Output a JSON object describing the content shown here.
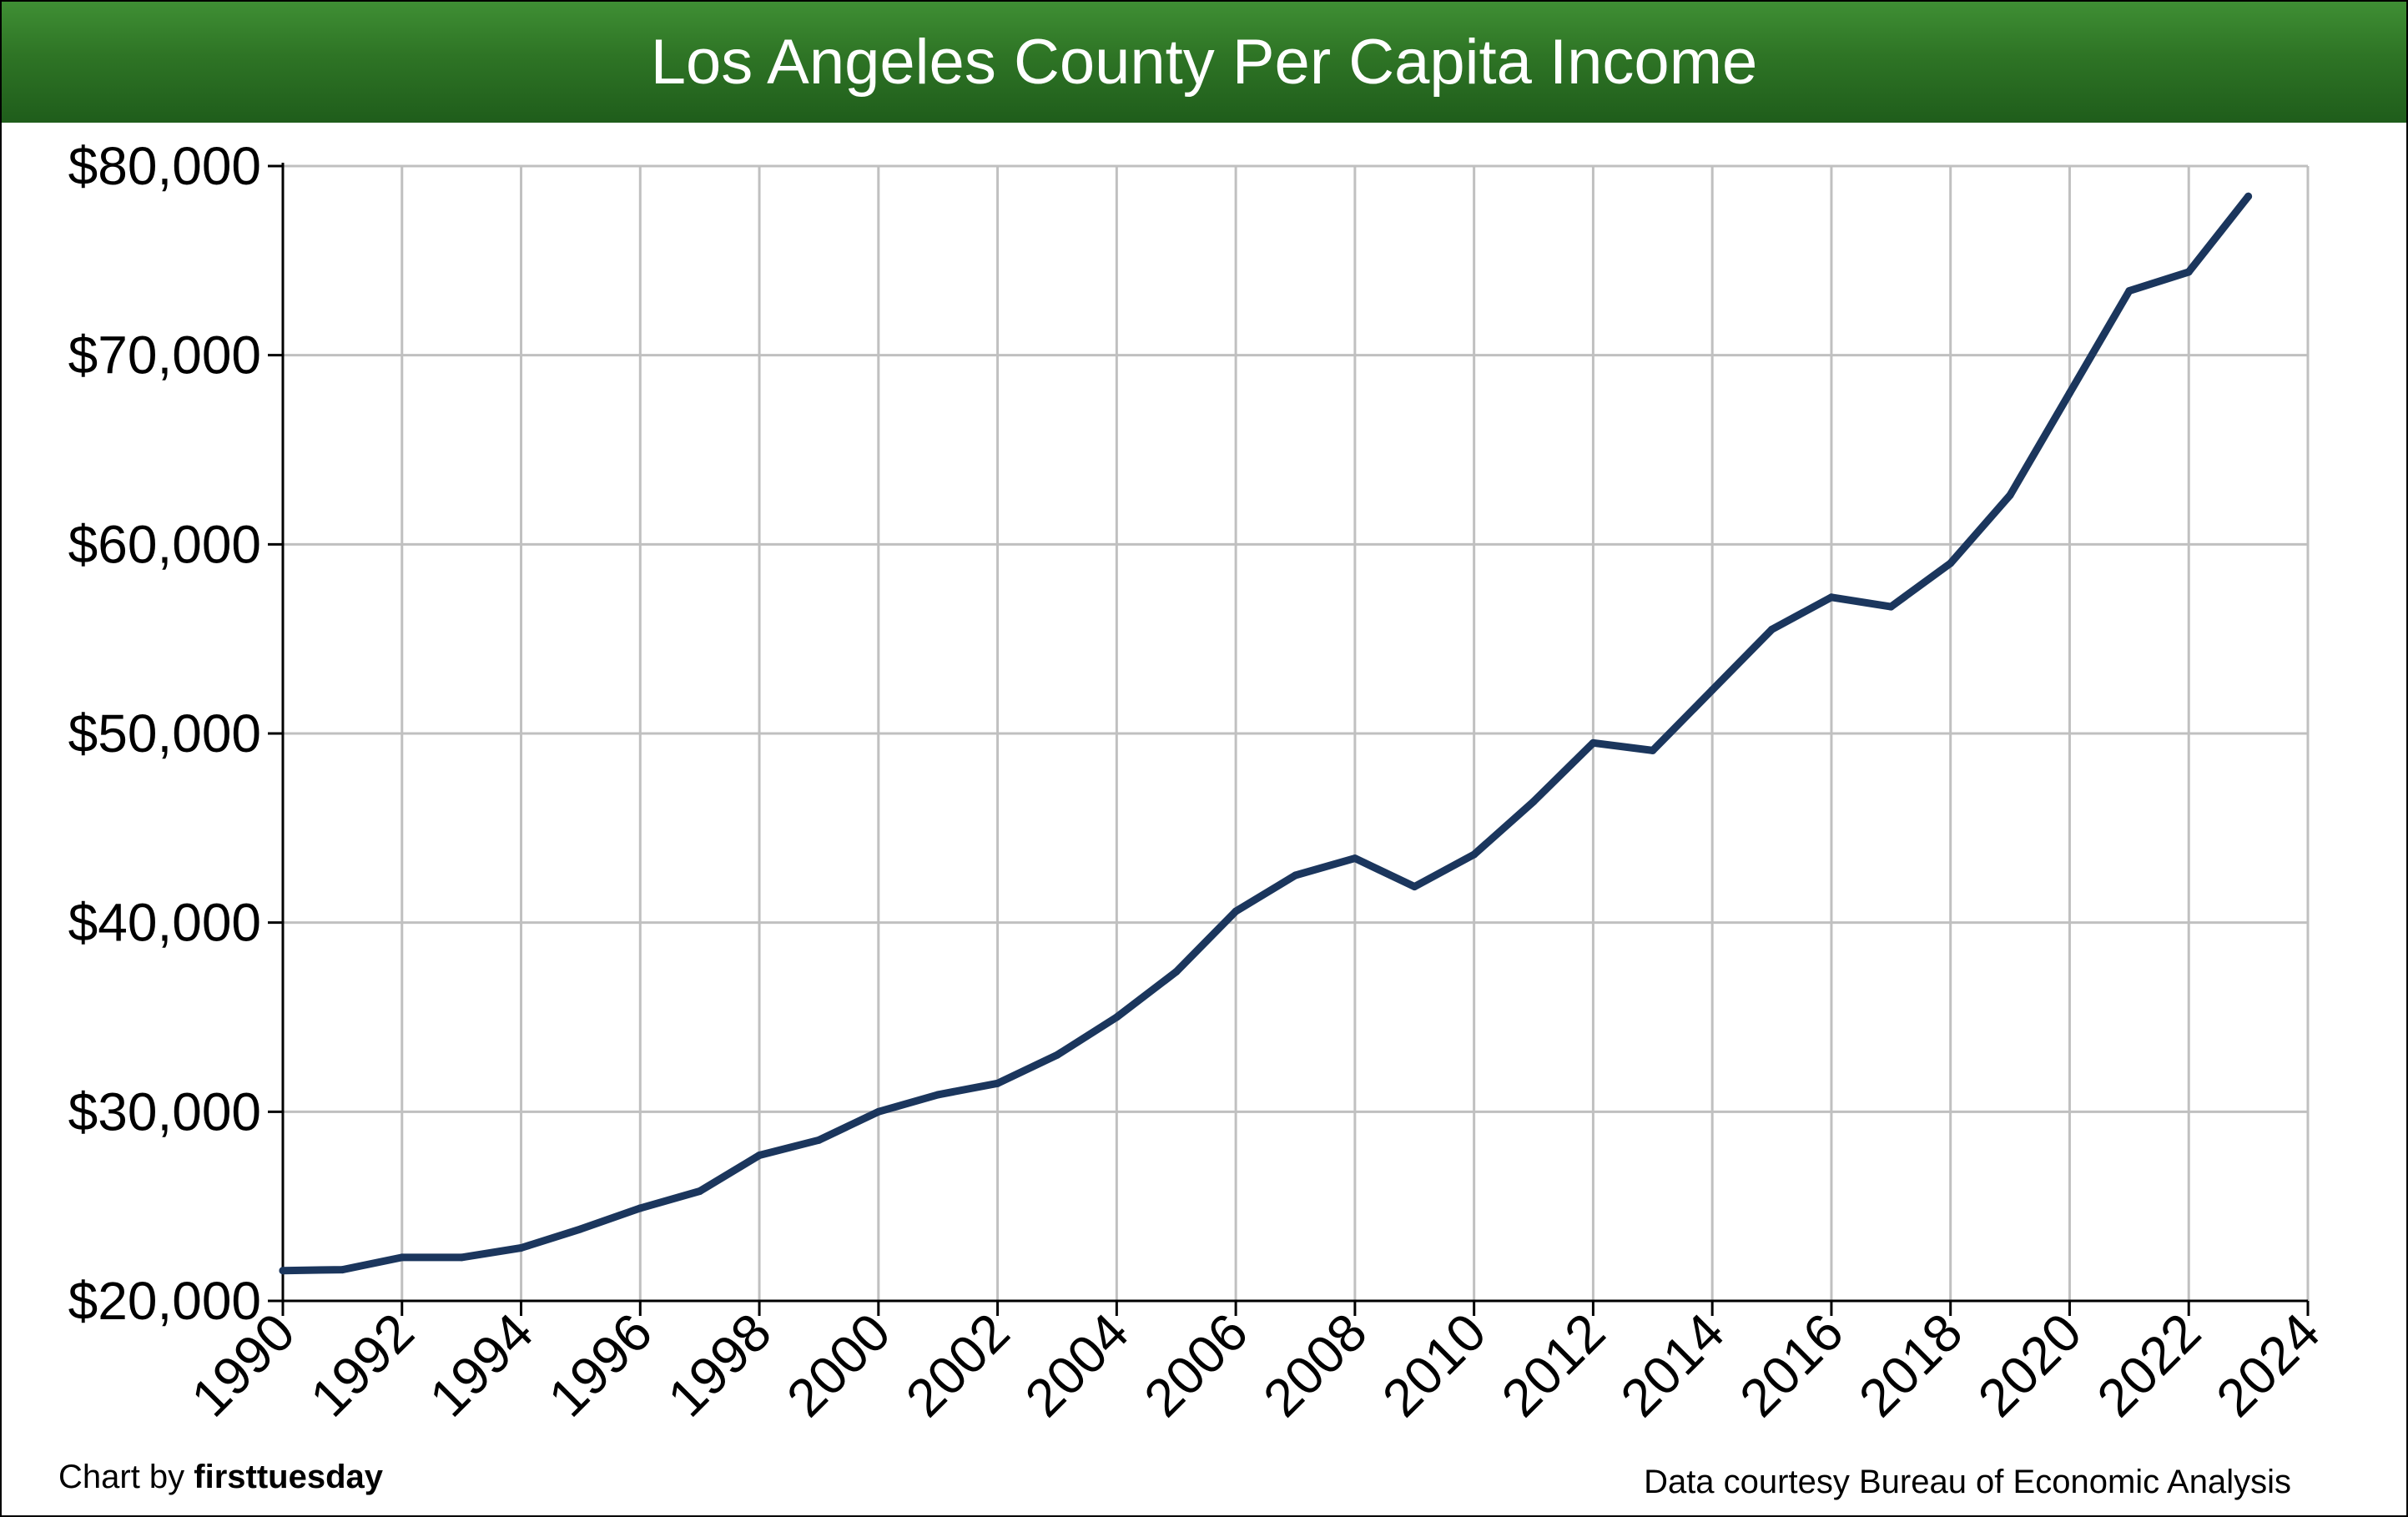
{
  "header": {
    "title": "Los Angeles County Per Capita Income"
  },
  "footer": {
    "credit_prefix": "Chart by ",
    "credit_brand": "firsttuesday",
    "source": "Data courtesy Bureau of Economic Analysis"
  },
  "colors": {
    "title_bar": "#2e7425",
    "line": "#1b365d",
    "grid": "#c0c0c0"
  },
  "chart_data": {
    "type": "line",
    "title": "Los Angeles County Per Capita Income",
    "xlabel": "",
    "ylabel": "",
    "xlim": [
      1990,
      2024
    ],
    "ylim": [
      20000,
      80000
    ],
    "x_ticks": [
      "1990",
      "1992",
      "1994",
      "1996",
      "1998",
      "2000",
      "2002",
      "2004",
      "2006",
      "2008",
      "2010",
      "2012",
      "2014",
      "2016",
      "2018",
      "2020",
      "2022",
      "2024"
    ],
    "y_ticks": [
      "$20,000",
      "$30,000",
      "$40,000",
      "$50,000",
      "$60,000",
      "$70,000",
      "$80,000"
    ],
    "y_tick_values": [
      20000,
      30000,
      40000,
      50000,
      60000,
      70000,
      80000
    ],
    "grid": true,
    "legend": "none",
    "series": [
      {
        "x": [
          1990,
          1991,
          1992,
          1993,
          1994,
          1995,
          1996,
          1997,
          1998,
          1999,
          2000,
          2001,
          2002,
          2003,
          2004,
          2005,
          2006,
          2007,
          2008,
          2009,
          2010,
          2011,
          2012,
          2013,
          2014,
          2015,
          2016,
          2017,
          2018,
          2019,
          2020,
          2021,
          2022,
          2023
        ],
        "values": [
          21600,
          21650,
          22300,
          22300,
          22800,
          23800,
          24900,
          25800,
          27700,
          28500,
          30000,
          30900,
          31500,
          33000,
          35000,
          37400,
          40600,
          42500,
          43400,
          41900,
          43600,
          46400,
          49500,
          49100,
          52300,
          55500,
          57200,
          56700,
          59000,
          62600,
          68000,
          73400,
          74400,
          78400
        ]
      }
    ]
  }
}
